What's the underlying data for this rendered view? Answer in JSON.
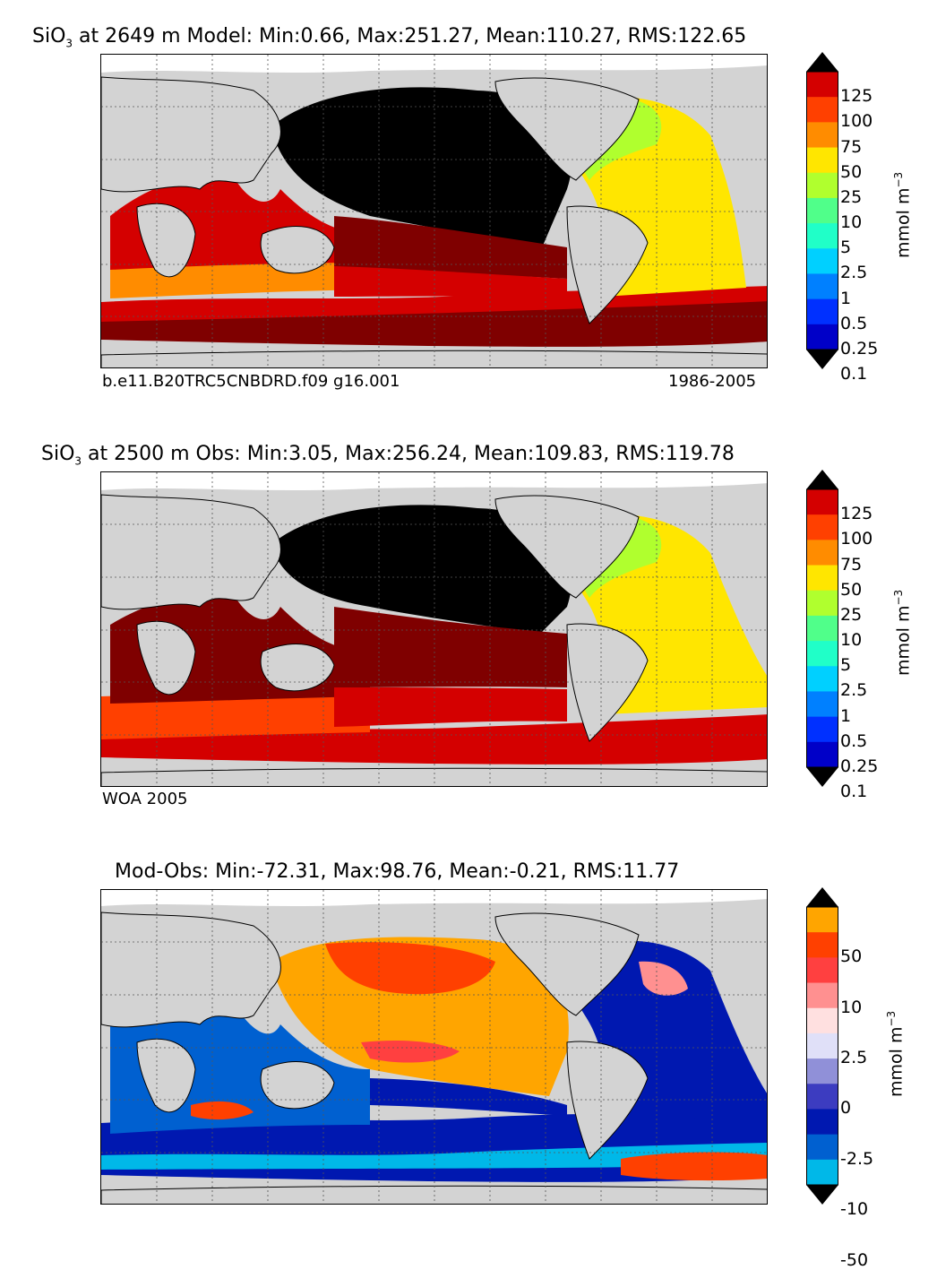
{
  "panels": [
    {
      "id": "model",
      "title_prefix": "SiO",
      "title_sub": "3",
      "title_rest": " at 2649 m Model: Min:0.66, Max:251.27, Mean:110.27, RMS:122.65",
      "footer_left": "b.e11.B20TRC5CNBDRD.f09 g16.001",
      "footer_right": "1986-2005",
      "colorbar": {
        "unit": "mmol m",
        "unit_sup": "−3",
        "ticks": [
          "125",
          "100",
          "75",
          "50",
          "25",
          "10",
          "5",
          "2.5",
          "1",
          "0.5",
          "0.25",
          "0.1"
        ],
        "colors": [
          "#7f0000",
          "#d40000",
          "#ff4000",
          "#ff8c00",
          "#ffe600",
          "#b0ff2e",
          "#50ff8a",
          "#20ffc8",
          "#00d0ff",
          "#0080ff",
          "#0030ff",
          "#0000c8",
          "#000080"
        ]
      }
    },
    {
      "id": "obs",
      "title_prefix": "SiO",
      "title_sub": "3",
      "title_rest": " at 2500 m Obs: Min:3.05, Max:256.24, Mean:109.83, RMS:119.78",
      "footer_left": "WOA 2005",
      "footer_right": "",
      "colorbar": {
        "unit": "mmol m",
        "unit_sup": "−3",
        "ticks": [
          "125",
          "100",
          "75",
          "50",
          "25",
          "10",
          "5",
          "2.5",
          "1",
          "0.5",
          "0.25",
          "0.1"
        ],
        "colors": [
          "#7f0000",
          "#d40000",
          "#ff4000",
          "#ff8c00",
          "#ffe600",
          "#b0ff2e",
          "#50ff8a",
          "#20ffc8",
          "#00d0ff",
          "#0080ff",
          "#0030ff",
          "#0000c8",
          "#000080"
        ]
      }
    },
    {
      "id": "diff",
      "title_prefix": "",
      "title_sub": "",
      "title_rest": "Mod-Obs: Min:-72.31, Max:98.76, Mean:-0.21, RMS:11.77",
      "footer_left": "",
      "footer_right": "",
      "colorbar": {
        "unit": "mmol m",
        "unit_sup": "−3",
        "ticks": [
          "50",
          "10",
          "2.5",
          "0",
          "-2.5",
          "-10",
          "-50"
        ],
        "colors": [
          "#ffff00",
          "#ffa500",
          "#ff4000",
          "#ff4040",
          "#ff9090",
          "#ffe0e0",
          "#e0e0f8",
          "#9090d8",
          "#3c3cc0",
          "#0018b0",
          "#0060d0",
          "#00b8e8",
          "#00ffff"
        ]
      }
    }
  ],
  "legend_colors": {
    "land": "#d3d3d3",
    "missing": "#ffffff",
    "pacific_black": "#000000"
  }
}
